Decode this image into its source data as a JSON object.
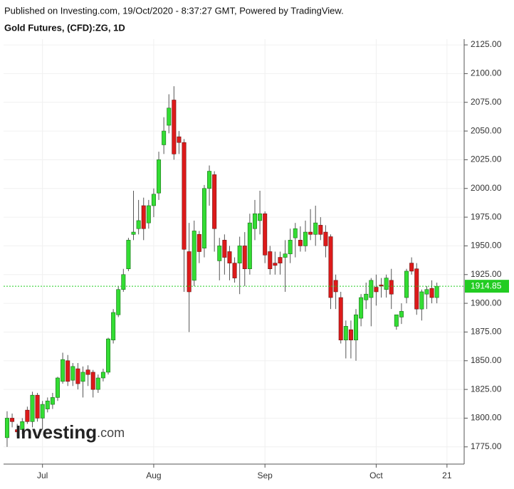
{
  "chart_data": {
    "type": "candlestick",
    "source": "Published on Investing.com, 19/Oct/2020 - 8:37:27 GMT, Powered by TradingView.",
    "title": "Gold Futures, (CFD):ZG, 1D",
    "logo": {
      "name": "Investing",
      "suffix": ".com"
    },
    "up_color": "#33dd33",
    "down_color": "#dd1a1a",
    "price_line_color": "#22cc22",
    "last_price": 1914.85,
    "grid": true,
    "xlim": [
      -0.7,
      90.4
    ],
    "xticks": [
      {
        "value": 7,
        "label": "Jul"
      },
      {
        "value": 29,
        "label": "Aug"
      },
      {
        "value": 51,
        "label": "Sep"
      },
      {
        "value": 73,
        "label": "Oct"
      },
      {
        "value": 87,
        "label": "21"
      }
    ],
    "ylim": [
      1760,
      2130
    ],
    "yticks": [
      {
        "value": 1775,
        "label": "1775.00"
      },
      {
        "value": 1800,
        "label": "1800.00"
      },
      {
        "value": 1825,
        "label": "1825.00"
      },
      {
        "value": 1850,
        "label": "1850.00"
      },
      {
        "value": 1875,
        "label": "1875.00"
      },
      {
        "value": 1900,
        "label": "1900.00"
      },
      {
        "value": 1925,
        "label": "1925.00"
      },
      {
        "value": 1950,
        "label": "1950.00"
      },
      {
        "value": 1975,
        "label": "1975.00"
      },
      {
        "value": 2000,
        "label": "2000.00"
      },
      {
        "value": 2025,
        "label": "2025.00"
      },
      {
        "value": 2050,
        "label": "2050.00"
      },
      {
        "value": 2075,
        "label": "2075.00"
      },
      {
        "value": 2100,
        "label": "2100.00"
      },
      {
        "value": 2125,
        "label": "2125.00"
      }
    ],
    "open": [
      1783,
      1800,
      1790,
      1790,
      1807,
      1797,
      1820,
      1800,
      1808,
      1812,
      1818,
      1832,
      1850,
      1833,
      1843,
      1832,
      1842,
      1840,
      1825,
      1835,
      1840,
      1868,
      1890,
      1912,
      1930,
      1960,
      1965,
      1985,
      1970,
      1985,
      1996,
      2038,
      2055,
      2077,
      2045,
      2040,
      1945,
      1920,
      1960,
      1948,
      2000,
      2012,
      1937,
      1955,
      1945,
      1935,
      1935,
      1950,
      1930,
      1965,
      1972,
      1978,
      1945,
      1935,
      1940,
      1940,
      1943,
      1957,
      1955,
      1950,
      1962,
      1960,
      1968,
      1962,
      1958,
      1920,
      1905,
      1868,
      1877,
      1868,
      1887,
      1903,
      1905,
      1914,
      1916,
      1912,
      1920,
      1880,
      1888,
      1905,
      1935,
      1930,
      1895,
      1908,
      1913,
      1905
    ],
    "high": [
      1806,
      1804,
      1795,
      1800,
      1810,
      1823,
      1822,
      1815,
      1818,
      1822,
      1836,
      1857,
      1855,
      1848,
      1848,
      1845,
      1846,
      1842,
      1838,
      1843,
      1870,
      1895,
      1915,
      1930,
      1957,
      1998,
      1990,
      1992,
      1990,
      2000,
      2032,
      2062,
      2082,
      2089,
      2050,
      2043,
      1970,
      1972,
      1963,
      2003,
      2020,
      2015,
      1957,
      1960,
      1950,
      1940,
      1958,
      1962,
      1978,
      1990,
      1998,
      1980,
      1950,
      1945,
      1945,
      1955,
      1965,
      1970,
      1967,
      1972,
      1982,
      1985,
      1975,
      1968,
      1960,
      1925,
      1910,
      1885,
      1885,
      1895,
      1908,
      1918,
      1922,
      1925,
      1922,
      1925,
      1930,
      1890,
      1900,
      1930,
      1940,
      1935,
      1912,
      1915,
      1920,
      1918
    ],
    "low": [
      1775,
      1792,
      1784,
      1786,
      1795,
      1792,
      1797,
      1790,
      1805,
      1808,
      1815,
      1830,
      1828,
      1828,
      1825,
      1818,
      1828,
      1818,
      1822,
      1832,
      1838,
      1865,
      1888,
      1910,
      1928,
      1955,
      1960,
      1955,
      1965,
      1975,
      1990,
      2030,
      2048,
      2025,
      2030,
      1910,
      1875,
      1915,
      1935,
      1940,
      1985,
      1945,
      1920,
      1925,
      1920,
      1918,
      1908,
      1915,
      1925,
      1955,
      1960,
      1935,
      1925,
      1925,
      1925,
      1910,
      1935,
      1940,
      1945,
      1945,
      1955,
      1950,
      1955,
      1940,
      1895,
      1895,
      1865,
      1852,
      1852,
      1850,
      1880,
      1895,
      1880,
      1898,
      1905,
      1905,
      1895,
      1877,
      1882,
      1900,
      1925,
      1890,
      1885,
      1895,
      1900,
      1900
    ],
    "close": [
      1800,
      1797,
      1788,
      1797,
      1797,
      1820,
      1800,
      1812,
      1815,
      1818,
      1835,
      1851,
      1832,
      1845,
      1830,
      1840,
      1838,
      1825,
      1835,
      1840,
      1869,
      1892,
      1912,
      1925,
      1955,
      1962,
      1972,
      1965,
      1985,
      1995,
      2025,
      2050,
      2070,
      2030,
      2040,
      1947,
      1910,
      1963,
      1945,
      2000,
      2015,
      1965,
      1950,
      1940,
      1935,
      1922,
      1950,
      1930,
      1970,
      1978,
      1978,
      1942,
      1930,
      1933,
      1935,
      1943,
      1955,
      1965,
      1950,
      1962,
      1960,
      1970,
      1960,
      1950,
      1905,
      1910,
      1868,
      1880,
      1868,
      1890,
      1905,
      1908,
      1920,
      1910,
      1915,
      1922,
      1908,
      1890,
      1893,
      1928,
      1928,
      1895,
      1910,
      1912,
      1905,
      1914.85
    ]
  }
}
